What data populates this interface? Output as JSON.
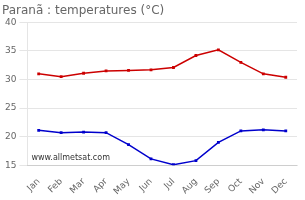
{
  "chart_data": {
    "type": "line",
    "title": "Paranã : temperatures (°C)",
    "categories": [
      "Jan",
      "Feb",
      "Mar",
      "Apr",
      "May",
      "Jun",
      "Jul",
      "Aug",
      "Sep",
      "Oct",
      "Nov",
      "Dec"
    ],
    "series": [
      {
        "color": "#cc0000",
        "values": [
          31.0,
          30.5,
          31.1,
          31.5,
          31.6,
          31.7,
          32.1,
          34.2,
          35.2,
          33.0,
          31.0,
          30.4
        ]
      },
      {
        "color": "#0000cc",
        "values": [
          21.1,
          20.7,
          20.8,
          20.7,
          18.6,
          16.1,
          15.1,
          15.8,
          19.0,
          21.0,
          21.2,
          21.0
        ]
      }
    ],
    "ylim": [
      15,
      40
    ],
    "yticks": [
      15,
      20,
      25,
      30,
      35,
      40
    ],
    "grid": "y",
    "marker": "square",
    "annotations": [
      "www.allmetsat.com"
    ]
  }
}
